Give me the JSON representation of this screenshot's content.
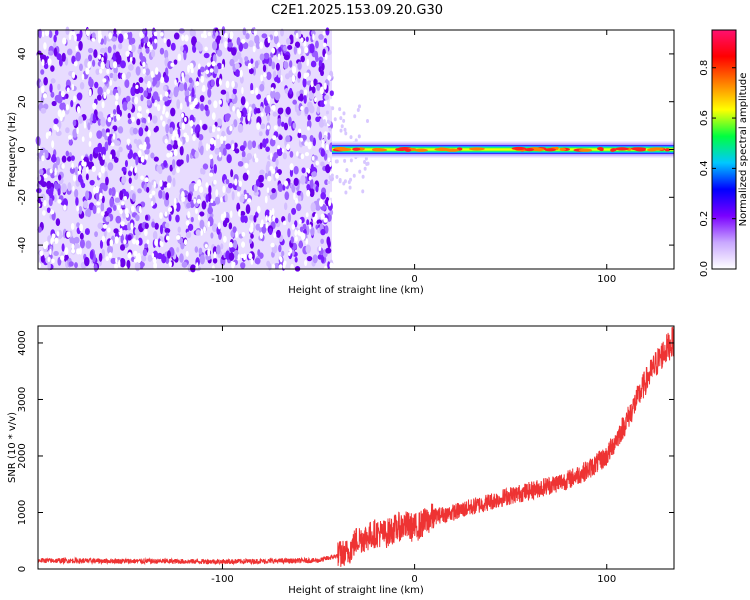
{
  "title": "C2E1.2025.153.09.20.G30",
  "chart_data": [
    {
      "type": "heatmap",
      "xlabel": "Height of straight line (km)",
      "ylabel": "Frequency (Hz)",
      "xlim": [
        -196,
        135
      ],
      "ylim": [
        -50,
        50
      ],
      "xticks": [
        -100,
        0,
        100
      ],
      "yticks": [
        -40,
        -20,
        0,
        20,
        40
      ],
      "noise_region_x": [
        -196,
        -43
      ],
      "tone_frequency_hz": 0,
      "tone_start_x": -43,
      "colorbar": {
        "label": "Normalized spectral amplitude",
        "range": [
          0,
          0.95
        ],
        "ticks": [
          0.0,
          0.2,
          0.4,
          0.6,
          0.8
        ],
        "colors": [
          "#ffffff",
          "#c9a8ff",
          "#7a00ff",
          "#0000ff",
          "#00c8ff",
          "#00ff40",
          "#ffff00",
          "#ff8000",
          "#ff0000",
          "#ff1070"
        ]
      }
    },
    {
      "type": "line",
      "xlabel": "Height of straight line (km)",
      "ylabel": "SNR (10 * v/v)",
      "xlim": [
        -196,
        135
      ],
      "ylim": [
        0,
        4300
      ],
      "xticks": [
        -100,
        0,
        100
      ],
      "yticks": [
        0,
        1000,
        2000,
        3000,
        4000
      ],
      "line_color": "#ee3333",
      "x": [
        -196,
        -150,
        -100,
        -50,
        -35,
        -30,
        -25,
        -20,
        -15,
        -10,
        -5,
        0,
        5,
        10,
        20,
        30,
        40,
        50,
        60,
        70,
        80,
        90,
        100,
        105,
        110,
        115,
        120,
        125,
        130,
        135
      ],
      "y": [
        150,
        140,
        130,
        150,
        280,
        520,
        560,
        640,
        620,
        720,
        780,
        720,
        820,
        930,
        1000,
        1100,
        1200,
        1300,
        1380,
        1480,
        1580,
        1750,
        2000,
        2300,
        2600,
        2950,
        3300,
        3600,
        3850,
        4050
      ]
    }
  ]
}
